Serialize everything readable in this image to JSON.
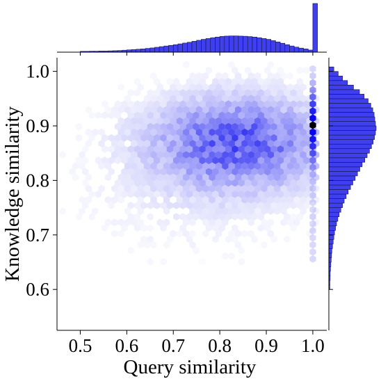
{
  "chart_data": {
    "type": "hexbin",
    "title": "",
    "xlabel": "Query similarity",
    "ylabel": "Knowledge similarity",
    "xlim": [
      0.45,
      1.03
    ],
    "ylim": [
      0.525,
      1.025
    ],
    "x_ticks": [
      "0.5",
      "0.6",
      "0.7",
      "0.8",
      "0.9",
      "1.0"
    ],
    "y_ticks": [
      "0.6",
      "0.7",
      "0.8",
      "0.9",
      "1.0"
    ],
    "grid": false,
    "legend": "none",
    "colors": {
      "bar_fill": "#3f3ff0",
      "bar_edge": "#14144a",
      "hex_max": "#0000ee",
      "hex_peak": "#000000"
    },
    "hexbin": {
      "approx_center": [
        0.84,
        0.87
      ],
      "high_density_column_x": 1.0
    },
    "marginal_x": {
      "bin_start": 0.5,
      "bin_width": 0.01,
      "counts": [
        0.5,
        0.5,
        0.6,
        0.6,
        0.7,
        0.7,
        0.8,
        0.9,
        1,
        1.2,
        1.4,
        1.6,
        1.8,
        2,
        2.3,
        2.6,
        3,
        3.4,
        3.8,
        4.2,
        4.6,
        5.1,
        5.6,
        6.1,
        6.7,
        7.3,
        7.9,
        8.4,
        8.9,
        9.3,
        9.7,
        9.9,
        10,
        10,
        9.9,
        9.8,
        9.6,
        9.3,
        8.9,
        8.4,
        7.9,
        7.1,
        6.3,
        5.5,
        4.6,
        3.8,
        3.1,
        2.5,
        2.0,
        1.3,
        30
      ]
    },
    "marginal_y": {
      "bin_start": 0.6,
      "bin_width": 0.00833,
      "counts": [
        0.3,
        0.3,
        0.4,
        0.4,
        0.5,
        0.6,
        0.7,
        0.8,
        0.9,
        1.1,
        1.3,
        1.5,
        1.7,
        2,
        2.3,
        2.7,
        3.1,
        3.6,
        4.1,
        4.6,
        5.2,
        5.8,
        6.5,
        7.2,
        7.9,
        8.6,
        9.3,
        10,
        10.8,
        11.5,
        12.2,
        12.8,
        13.3,
        13.7,
        14,
        14.2,
        14,
        13.8,
        13.6,
        13.2,
        12.6,
        11.8,
        10.6,
        9.2,
        7.4,
        5.6,
        4.1,
        2.8,
        1.5
      ]
    }
  }
}
